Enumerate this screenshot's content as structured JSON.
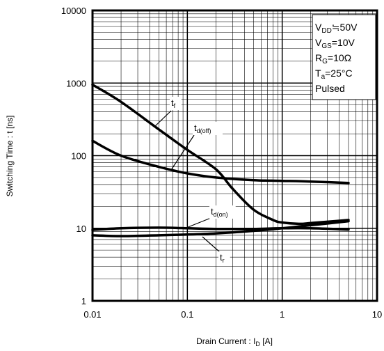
{
  "chart_data": {
    "type": "line",
    "title": "",
    "x_scale": "log",
    "y_scale": "log",
    "xlim": [
      0.01,
      10
    ],
    "ylim": [
      1,
      10000
    ],
    "grid": true,
    "x_ticks": [
      "0.01",
      "0.1",
      "1",
      "10"
    ],
    "y_ticks": [
      "1",
      "10",
      "100",
      "1000",
      "10000"
    ],
    "xlabel": {
      "main": "Drain Current : I",
      "sub": "D",
      "unit": " [A]"
    },
    "ylabel": "Switching Time : t [ns]",
    "conditions": [
      {
        "main": "V",
        "sub": "DD",
        "rest": "≒50V"
      },
      {
        "main": "V",
        "sub": "GS",
        "rest": "=10V"
      },
      {
        "main": "R",
        "sub": "G",
        "rest": "=10Ω"
      },
      {
        "main": "T",
        "sub": "a",
        "rest": "=25°C"
      },
      {
        "main": "Pulsed",
        "sub": "",
        "rest": ""
      }
    ],
    "series": [
      {
        "name": "tf",
        "label_main": "t",
        "label_sub": "f",
        "x": [
          0.01,
          0.02,
          0.05,
          0.1,
          0.2,
          0.3,
          0.5,
          0.8,
          1,
          1.5,
          2,
          3,
          5
        ],
        "y": [
          950,
          550,
          230,
          120,
          65,
          35,
          18,
          13,
          12,
          11.5,
          11.8,
          12.3,
          13
        ]
      },
      {
        "name": "td(off)",
        "label_main": "t",
        "label_sub": "d(off)",
        "x": [
          0.01,
          0.02,
          0.05,
          0.1,
          0.2,
          0.5,
          1,
          2,
          5
        ],
        "y": [
          160,
          100,
          70,
          57,
          50,
          46,
          45,
          44,
          42
        ]
      },
      {
        "name": "td(on)",
        "label_main": "t",
        "label_sub": "d(on)",
        "x": [
          0.01,
          0.02,
          0.05,
          0.1,
          0.2,
          0.5,
          1,
          2,
          5
        ],
        "y": [
          9.5,
          10,
          10.2,
          10,
          9.8,
          9.8,
          10,
          10,
          9.6
        ]
      },
      {
        "name": "tr",
        "label_main": "t",
        "label_sub": "r",
        "x": [
          0.01,
          0.02,
          0.05,
          0.1,
          0.2,
          0.5,
          1,
          2,
          5
        ],
        "y": [
          8,
          7.8,
          8,
          8.2,
          8.5,
          9.2,
          10,
          11,
          12.5
        ]
      }
    ]
  }
}
